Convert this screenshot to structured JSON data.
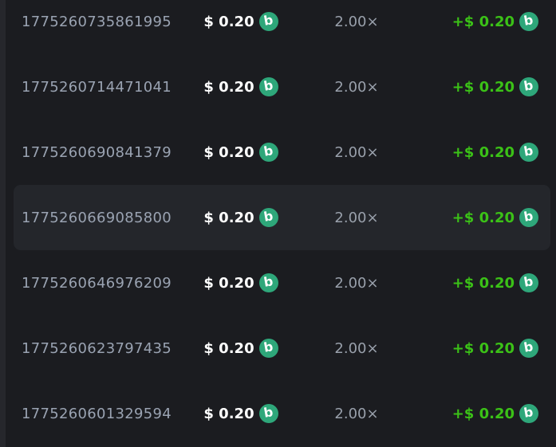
{
  "page": {
    "background": "#26272c"
  },
  "table": {
    "background": "#1b1c20",
    "highlight_background": "#24262b",
    "coin": {
      "icon": "coin-icon",
      "glyph": "b",
      "background": "#2ea77a",
      "glyph_color": "#ffffff"
    },
    "colors": {
      "id_text": "#9aa3b2",
      "multiplier_text": "#99a0ab",
      "amount_text": "#ffffff",
      "payout_text": "#3bc117"
    },
    "rows": [
      {
        "id": "1775260735861995",
        "amount": "$ 0.20",
        "multiplier": "2.00×",
        "payout": "+$ 0.20",
        "highlighted": false
      },
      {
        "id": "1775260714471041",
        "amount": "$ 0.20",
        "multiplier": "2.00×",
        "payout": "+$ 0.20",
        "highlighted": false
      },
      {
        "id": "1775260690841379",
        "amount": "$ 0.20",
        "multiplier": "2.00×",
        "payout": "+$ 0.20",
        "highlighted": false
      },
      {
        "id": "1775260669085800",
        "amount": "$ 0.20",
        "multiplier": "2.00×",
        "payout": "+$ 0.20",
        "highlighted": true
      },
      {
        "id": "1775260646976209",
        "amount": "$ 0.20",
        "multiplier": "2.00×",
        "payout": "+$ 0.20",
        "highlighted": false
      },
      {
        "id": "1775260623797435",
        "amount": "$ 0.20",
        "multiplier": "2.00×",
        "payout": "+$ 0.20",
        "highlighted": false
      },
      {
        "id": "1775260601329594",
        "amount": "$ 0.20",
        "multiplier": "2.00×",
        "payout": "+$ 0.20",
        "highlighted": false
      }
    ]
  }
}
